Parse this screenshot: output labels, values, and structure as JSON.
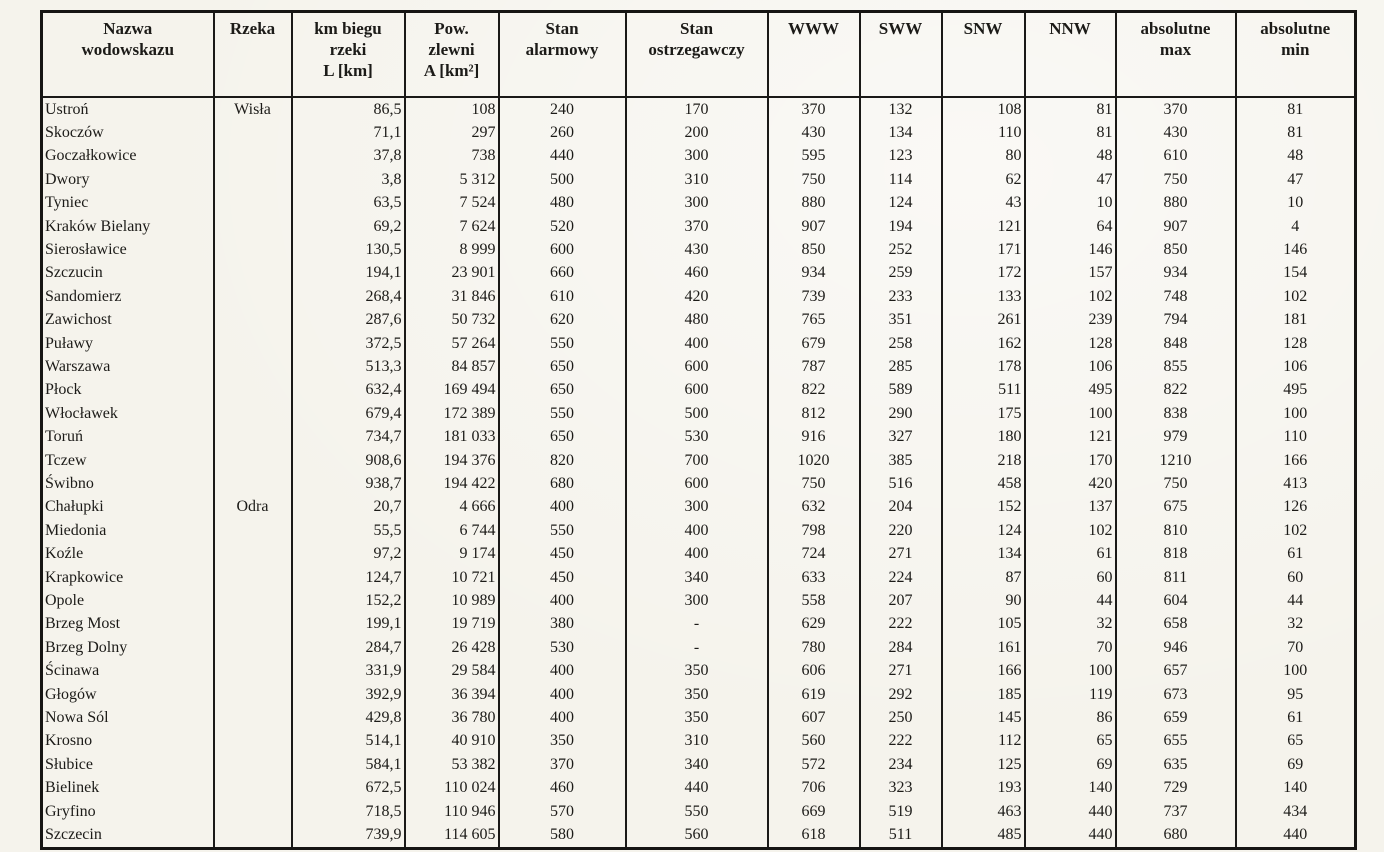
{
  "table": {
    "columns": [
      {
        "id": "nazwa",
        "label": "Nazwa\nwodowskazu",
        "align": "left"
      },
      {
        "id": "rzeka",
        "label": "Rzeka",
        "align": "center"
      },
      {
        "id": "km_biegu",
        "label": "km biegu\nrzeki\nL [km]",
        "align": "right"
      },
      {
        "id": "pow_zlewni",
        "label": "Pow.\nzlewni\nA [km²]",
        "align": "right"
      },
      {
        "id": "stan_alarmowy",
        "label": "Stan\nalarmowy",
        "align": "center"
      },
      {
        "id": "stan_ostrzegawczy",
        "label": "Stan\nostrzegawczy",
        "align": "center"
      },
      {
        "id": "www",
        "label": "WWW",
        "align": "center"
      },
      {
        "id": "sww",
        "label": "SWW",
        "align": "center"
      },
      {
        "id": "snw",
        "label": "SNW",
        "align": "right"
      },
      {
        "id": "nnw",
        "label": "NNW",
        "align": "right"
      },
      {
        "id": "abs_max",
        "label": "absolutne\nmax",
        "align": "center"
      },
      {
        "id": "abs_min",
        "label": "absolutne\nmin",
        "align": "center"
      }
    ],
    "rows": [
      [
        "Ustroń",
        "Wisła",
        "86,5",
        "108",
        "240",
        "170",
        "370",
        "132",
        "108",
        "81",
        "370",
        "81"
      ],
      [
        "Skoczów",
        "",
        "71,1",
        "297",
        "260",
        "200",
        "430",
        "134",
        "110",
        "81",
        "430",
        "81"
      ],
      [
        "Goczałkowice",
        "",
        "37,8",
        "738",
        "440",
        "300",
        "595",
        "123",
        "80",
        "48",
        "610",
        "48"
      ],
      [
        "Dwory",
        "",
        "3,8",
        "5 312",
        "500",
        "310",
        "750",
        "114",
        "62",
        "47",
        "750",
        "47"
      ],
      [
        "Tyniec",
        "",
        "63,5",
        "7 524",
        "480",
        "300",
        "880",
        "124",
        "43",
        "10",
        "880",
        "10"
      ],
      [
        "Kraków Bielany",
        "",
        "69,2",
        "7 624",
        "520",
        "370",
        "907",
        "194",
        "121",
        "64",
        "907",
        "4"
      ],
      [
        "Sierosławice",
        "",
        "130,5",
        "8 999",
        "600",
        "430",
        "850",
        "252",
        "171",
        "146",
        "850",
        "146"
      ],
      [
        "Szczucin",
        "",
        "194,1",
        "23 901",
        "660",
        "460",
        "934",
        "259",
        "172",
        "157",
        "934",
        "154"
      ],
      [
        "Sandomierz",
        "",
        "268,4",
        "31 846",
        "610",
        "420",
        "739",
        "233",
        "133",
        "102",
        "748",
        "102"
      ],
      [
        "Zawichost",
        "",
        "287,6",
        "50 732",
        "620",
        "480",
        "765",
        "351",
        "261",
        "239",
        "794",
        "181"
      ],
      [
        "Puławy",
        "",
        "372,5",
        "57 264",
        "550",
        "400",
        "679",
        "258",
        "162",
        "128",
        "848",
        "128"
      ],
      [
        "Warszawa",
        "",
        "513,3",
        "84 857",
        "650",
        "600",
        "787",
        "285",
        "178",
        "106",
        "855",
        "106"
      ],
      [
        "Płock",
        "",
        "632,4",
        "169 494",
        "650",
        "600",
        "822",
        "589",
        "511",
        "495",
        "822",
        "495"
      ],
      [
        "Włocławek",
        "",
        "679,4",
        "172 389",
        "550",
        "500",
        "812",
        "290",
        "175",
        "100",
        "838",
        "100"
      ],
      [
        "Toruń",
        "",
        "734,7",
        "181 033",
        "650",
        "530",
        "916",
        "327",
        "180",
        "121",
        "979",
        "110"
      ],
      [
        "Tczew",
        "",
        "908,6",
        "194 376",
        "820",
        "700",
        "1020",
        "385",
        "218",
        "170",
        "1210",
        "166"
      ],
      [
        "Świbno",
        "",
        "938,7",
        "194 422",
        "680",
        "600",
        "750",
        "516",
        "458",
        "420",
        "750",
        "413"
      ],
      [
        "Chałupki",
        "Odra",
        "20,7",
        "4 666",
        "400",
        "300",
        "632",
        "204",
        "152",
        "137",
        "675",
        "126"
      ],
      [
        "Miedonia",
        "",
        "55,5",
        "6 744",
        "550",
        "400",
        "798",
        "220",
        "124",
        "102",
        "810",
        "102"
      ],
      [
        "Koźle",
        "",
        "97,2",
        "9 174",
        "450",
        "400",
        "724",
        "271",
        "134",
        "61",
        "818",
        "61"
      ],
      [
        "Krapkowice",
        "",
        "124,7",
        "10 721",
        "450",
        "340",
        "633",
        "224",
        "87",
        "60",
        "811",
        "60"
      ],
      [
        "Opole",
        "",
        "152,2",
        "10 989",
        "400",
        "300",
        "558",
        "207",
        "90",
        "44",
        "604",
        "44"
      ],
      [
        "Brzeg Most",
        "",
        "199,1",
        "19 719",
        "380",
        "-",
        "629",
        "222",
        "105",
        "32",
        "658",
        "32"
      ],
      [
        "Brzeg Dolny",
        "",
        "284,7",
        "26 428",
        "530",
        "-",
        "780",
        "284",
        "161",
        "70",
        "946",
        "70"
      ],
      [
        "Ścinawa",
        "",
        "331,9",
        "29 584",
        "400",
        "350",
        "606",
        "271",
        "166",
        "100",
        "657",
        "100"
      ],
      [
        "Głogów",
        "",
        "392,9",
        "36 394",
        "400",
        "350",
        "619",
        "292",
        "185",
        "119",
        "673",
        "95"
      ],
      [
        "Nowa Sól",
        "",
        "429,8",
        "36 780",
        "400",
        "350",
        "607",
        "250",
        "145",
        "86",
        "659",
        "61"
      ],
      [
        "Krosno",
        "",
        "514,1",
        "40 910",
        "350",
        "310",
        "560",
        "222",
        "112",
        "65",
        "655",
        "65"
      ],
      [
        "Słubice",
        "",
        "584,1",
        "53 382",
        "370",
        "340",
        "572",
        "234",
        "125",
        "69",
        "635",
        "69"
      ],
      [
        "Bielinek",
        "",
        "672,5",
        "110 024",
        "460",
        "440",
        "706",
        "323",
        "193",
        "140",
        "729",
        "140"
      ],
      [
        "Gryfino",
        "",
        "718,5",
        "110 946",
        "570",
        "550",
        "669",
        "519",
        "463",
        "440",
        "737",
        "434"
      ],
      [
        "Szczecin",
        "",
        "739,9",
        "114 605",
        "580",
        "560",
        "618",
        "511",
        "485",
        "440",
        "680",
        "440"
      ]
    ]
  }
}
